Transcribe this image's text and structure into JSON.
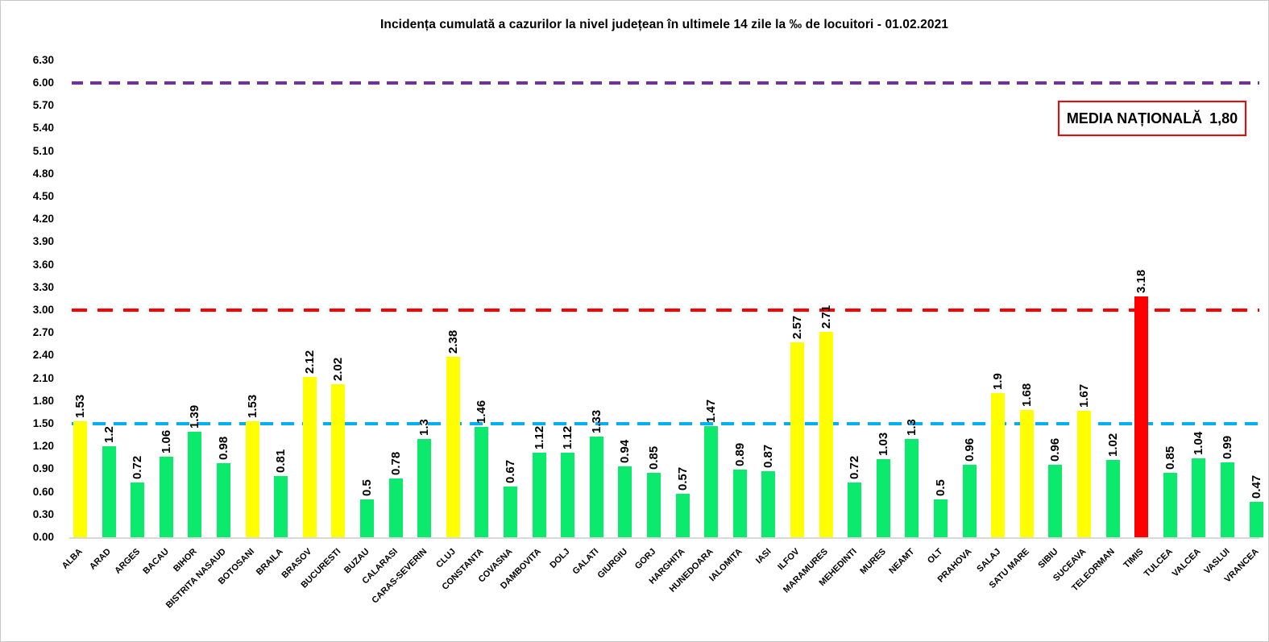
{
  "national_average_box": {
    "label": "MEDIA NAȚIONALĂ",
    "value": "1,80"
  },
  "chart_data": {
    "type": "bar",
    "title": "Incidența cumulată a cazurilor la nivel județean în ultimele 14 zile la ‰ de locuitori - 01.02.2021",
    "xlabel": "",
    "ylabel": "",
    "ylim": [
      0,
      6.3
    ],
    "ytick_step": 0.3,
    "grid": false,
    "legend": false,
    "value_label_rotation": 90,
    "category_label_rotation": 45,
    "categories": [
      "ALBA",
      "ARAD",
      "ARGES",
      "BACAU",
      "BIHOR",
      "BISTRITA NASAUD",
      "BOTOSANI",
      "BRAILA",
      "BRASOV",
      "BUCURESTI",
      "BUZAU",
      "CALARASI",
      "CARAS-SEVERIN",
      "CLUJ",
      "CONSTANTA",
      "COVASNA",
      "DAMBOVITA",
      "DOLJ",
      "GALATI",
      "GIURGIU",
      "GORJ",
      "HARGHITA",
      "HUNEDOARA",
      "IALOMITA",
      "IASI",
      "ILFOV",
      "MARAMURES",
      "MEHEDINTI",
      "MURES",
      "NEAMT",
      "OLT",
      "PRAHOVA",
      "SALAJ",
      "SATU MARE",
      "SIBIU",
      "SUCEAVA",
      "TELEORMAN",
      "TIMIS",
      "TULCEA",
      "VALCEA",
      "VASLUI",
      "VRANCEA"
    ],
    "values": [
      1.53,
      1.2,
      0.72,
      1.06,
      1.39,
      0.98,
      1.53,
      0.81,
      2.12,
      2.02,
      0.5,
      0.78,
      1.3,
      2.38,
      1.46,
      0.67,
      1.12,
      1.12,
      1.33,
      0.94,
      0.85,
      0.57,
      1.47,
      0.89,
      0.87,
      2.57,
      2.71,
      0.72,
      1.03,
      1.3,
      0.5,
      0.96,
      1.9,
      1.68,
      0.96,
      1.67,
      1.02,
      3.18,
      0.85,
      1.04,
      0.99,
      0.47
    ],
    "value_labels": [
      "1.53",
      "1.2",
      "0.72",
      "1.06",
      "1.39",
      "0.98",
      "1.53",
      "0.81",
      "2.12",
      "2.02",
      "0.5",
      "0.78",
      "1.3",
      "2.38",
      "1.46",
      "0.67",
      "1.12",
      "1.12",
      "1.33",
      "0.94",
      "0.85",
      "0.57",
      "1.47",
      "0.89",
      "0.87",
      "2.57",
      "2.71",
      "0.72",
      "1.03",
      "1.3",
      "0.5",
      "0.96",
      "1.9",
      "1.68",
      "0.96",
      "1.67",
      "1.02",
      "3.18",
      "0.85",
      "1.04",
      "0.99",
      "0.47"
    ],
    "bar_colors": [
      "yellow",
      "green",
      "green",
      "green",
      "green",
      "green",
      "yellow",
      "green",
      "yellow",
      "yellow",
      "green",
      "green",
      "green",
      "yellow",
      "green",
      "green",
      "green",
      "green",
      "green",
      "green",
      "green",
      "green",
      "green",
      "green",
      "green",
      "yellow",
      "yellow",
      "green",
      "green",
      "green",
      "green",
      "green",
      "yellow",
      "yellow",
      "green",
      "yellow",
      "green",
      "red",
      "green",
      "green",
      "green",
      "green"
    ],
    "palette": {
      "yellow": "#ffff00",
      "green": "#0bea6c",
      "red": "#ff0000"
    },
    "reference_lines": [
      {
        "value": 6.0,
        "color": "#7030a0",
        "style": "dashed",
        "name": "purple-dashed-line-6.00"
      },
      {
        "value": 3.0,
        "color": "#ff0000",
        "style": "dashed",
        "name": "red-dashed-line-3.00"
      },
      {
        "value": 1.5,
        "color": "#00b0f0",
        "style": "dashed",
        "name": "blue-dashed-line-1.50"
      }
    ],
    "axis_line_color": "#d9d9d9"
  }
}
